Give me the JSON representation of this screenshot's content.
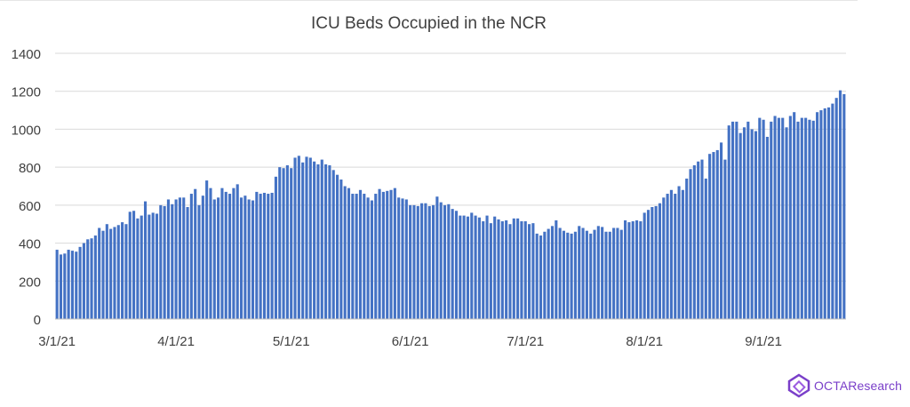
{
  "chart_data": {
    "type": "bar",
    "title": "ICU Beds Occupied in the NCR",
    "xlabel": "",
    "ylabel": "",
    "ylim": [
      0,
      1400
    ],
    "y_ticks": [
      0,
      200,
      400,
      600,
      800,
      1000,
      1200,
      1400
    ],
    "x_tick_labels": [
      "3/1/21",
      "4/1/21",
      "5/1/21",
      "6/1/21",
      "7/1/21",
      "8/1/21",
      "9/1/21"
    ],
    "x_tick_index": [
      0,
      31,
      61,
      92,
      122,
      153,
      184
    ],
    "grid": true,
    "bar_color": "#4472c4",
    "values": [
      365,
      340,
      345,
      365,
      360,
      355,
      380,
      400,
      420,
      425,
      440,
      480,
      465,
      500,
      475,
      485,
      495,
      510,
      500,
      565,
      570,
      530,
      545,
      620,
      550,
      560,
      555,
      600,
      595,
      630,
      605,
      630,
      640,
      640,
      590,
      660,
      685,
      600,
      650,
      730,
      690,
      630,
      640,
      690,
      670,
      660,
      690,
      710,
      640,
      650,
      630,
      625,
      670,
      660,
      665,
      660,
      665,
      750,
      800,
      795,
      810,
      795,
      850,
      860,
      825,
      855,
      850,
      830,
      815,
      840,
      815,
      810,
      785,
      760,
      735,
      700,
      690,
      660,
      660,
      680,
      660,
      640,
      625,
      660,
      685,
      670,
      675,
      680,
      690,
      640,
      635,
      630,
      600,
      600,
      595,
      610,
      610,
      595,
      600,
      645,
      615,
      600,
      605,
      580,
      570,
      545,
      545,
      540,
      560,
      545,
      535,
      515,
      545,
      505,
      540,
      525,
      515,
      520,
      500,
      530,
      530,
      515,
      515,
      500,
      505,
      450,
      440,
      460,
      475,
      490,
      520,
      480,
      465,
      455,
      450,
      460,
      490,
      480,
      465,
      450,
      470,
      490,
      485,
      460,
      460,
      480,
      480,
      470,
      520,
      510,
      515,
      520,
      515,
      560,
      575,
      590,
      595,
      610,
      640,
      660,
      680,
      660,
      700,
      680,
      740,
      790,
      810,
      830,
      840,
      740,
      870,
      880,
      890,
      930,
      840,
      1020,
      1040,
      1040,
      980,
      1010,
      1040,
      1000,
      990,
      1060,
      1050,
      960,
      1040,
      1070,
      1060,
      1060,
      1010,
      1070,
      1090,
      1040,
      1060,
      1060,
      1050,
      1045,
      1090,
      1100,
      1110,
      1115,
      1135,
      1165,
      1205,
      1185
    ]
  },
  "branding": {
    "text": "OCTAResearch",
    "icon": "octa-logo-icon",
    "color": "#7a3fc9"
  }
}
